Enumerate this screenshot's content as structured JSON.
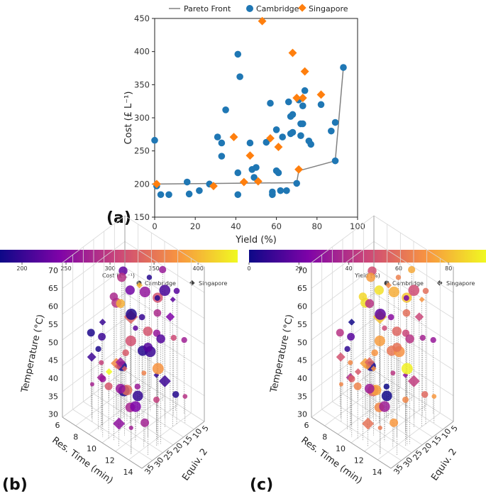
{
  "chart_data": [
    {
      "type": "scatter",
      "panel": "(a)",
      "xlabel": "Yield (%)",
      "ylabel": "Cost (£ L⁻¹)",
      "xlim": [
        0,
        100
      ],
      "ylim": [
        150,
        450
      ],
      "xticks": [
        0,
        20,
        40,
        60,
        80,
        100
      ],
      "yticks": [
        150,
        200,
        250,
        300,
        350,
        400,
        450
      ],
      "legend": [
        "Pareto Front",
        "Cambridge",
        "Singapore"
      ],
      "colors": {
        "cambridge": "#1f77b4",
        "singapore": "#ff7f0e",
        "pareto": "#808080"
      },
      "pareto_front": [
        [
          0,
          200
        ],
        [
          70,
          202
        ],
        [
          71,
          220
        ],
        [
          89,
          235
        ],
        [
          93,
          376
        ]
      ],
      "series": [
        {
          "name": "Cambridge",
          "marker": "circle",
          "points": [
            [
              0,
              266
            ],
            [
              1,
              197
            ],
            [
              3,
              184
            ],
            [
              7,
              184
            ],
            [
              16,
              203
            ],
            [
              17,
              185
            ],
            [
              22,
              190
            ],
            [
              27,
              200
            ],
            [
              31,
              271
            ],
            [
              33,
              262
            ],
            [
              33,
              242
            ],
            [
              35,
              312
            ],
            [
              41,
              396
            ],
            [
              42,
              362
            ],
            [
              41,
              217
            ],
            [
              41,
              184
            ],
            [
              47,
              262
            ],
            [
              48,
              222
            ],
            [
              49,
              210
            ],
            [
              50,
              225
            ],
            [
              55,
              263
            ],
            [
              57,
              322
            ],
            [
              58,
              188
            ],
            [
              58,
              184
            ],
            [
              60,
              282
            ],
            [
              60,
              220
            ],
            [
              61,
              217
            ],
            [
              62,
              190
            ],
            [
              63,
              271
            ],
            [
              65,
              190
            ],
            [
              66,
              324
            ],
            [
              67,
              302
            ],
            [
              67,
              276
            ],
            [
              68,
              305
            ],
            [
              68,
              278
            ],
            [
              70,
              201
            ],
            [
              71,
              327
            ],
            [
              72,
              291
            ],
            [
              72,
              273
            ],
            [
              73,
              318
            ],
            [
              74,
              341
            ],
            [
              73,
              291
            ],
            [
              76,
              265
            ],
            [
              77,
              260
            ],
            [
              82,
              320
            ],
            [
              87,
              280
            ],
            [
              89,
              293
            ],
            [
              89,
              235
            ],
            [
              93,
              376
            ]
          ]
        },
        {
          "name": "Singapore",
          "marker": "diamond",
          "points": [
            [
              1,
              200
            ],
            [
              29,
              197
            ],
            [
              39,
              271
            ],
            [
              44,
              203
            ],
            [
              47,
              243
            ],
            [
              51,
              204
            ],
            [
              53,
              446
            ],
            [
              57,
              269
            ],
            [
              61,
              256
            ],
            [
              68,
              398
            ],
            [
              70,
              330
            ],
            [
              71,
              222
            ],
            [
              73,
              330
            ],
            [
              74,
              370
            ],
            [
              82,
              335
            ]
          ]
        }
      ]
    },
    {
      "type": "scatter3d",
      "panel": "(b)",
      "colorbar_label": "Cost (£ L⁻¹)",
      "colorbar_ticks": [
        "200",
        "250",
        "300",
        "350",
        "400"
      ],
      "colorbar_range": [
        175,
        445
      ],
      "legend": [
        "Cambridge",
        "Singapore"
      ],
      "zlabel": "Temperature (°C)",
      "xlabel": "Res. Time (min)",
      "ylabel": "Equiv. 2",
      "zticks": [
        "30",
        "35",
        "40",
        "45",
        "50",
        "55",
        "60",
        "65",
        "70"
      ],
      "xticks": [
        "6",
        "8",
        "10",
        "12",
        "14"
      ],
      "yticks": [
        "5",
        "10",
        "15",
        "20",
        "25",
        "30",
        "35"
      ]
    },
    {
      "type": "scatter3d",
      "panel": "(c)",
      "colorbar_label": "Yield (%)",
      "colorbar_ticks": [
        "0",
        "20",
        "40",
        "60",
        "80"
      ],
      "colorbar_range": [
        0,
        95
      ],
      "legend": [
        "Cambridge",
        "Singapore"
      ],
      "zlabel": "Temperature (°C)",
      "xlabel": "Res. Time (min)",
      "ylabel": "Equiv. 2",
      "zticks": [
        "30",
        "35",
        "40",
        "45",
        "50",
        "55",
        "60",
        "65",
        "70"
      ],
      "xticks": [
        "6",
        "8",
        "10",
        "12",
        "14"
      ],
      "yticks": [
        "5",
        "10",
        "15",
        "20",
        "25",
        "30",
        "35"
      ]
    }
  ]
}
